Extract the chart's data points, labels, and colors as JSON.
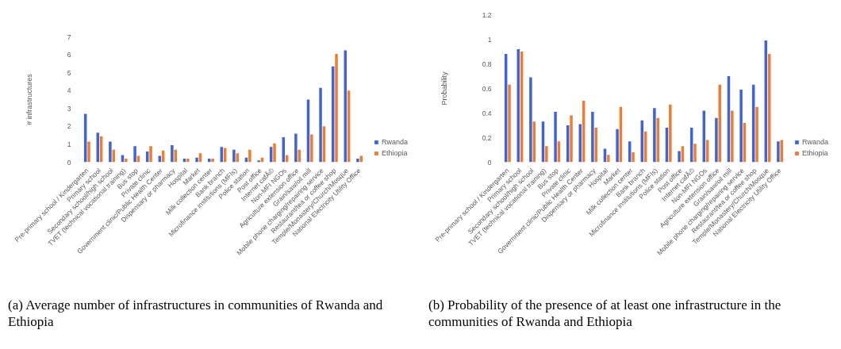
{
  "chart_data": [
    {
      "type": "bar",
      "ylabel": "# infrastructures",
      "ylim": [
        0,
        7
      ],
      "yticks": [
        0,
        1,
        2,
        3,
        4,
        5,
        6,
        7
      ],
      "legend": "bottom right",
      "categories": [
        "Pre-primary school / Kindergarten",
        "Primary school",
        "Secondary school/high school",
        "TVET (technical vocational training)",
        "Bus stop",
        "Private clinic",
        "Government clinic/Public Health Center",
        "Dispensary or pharmacy",
        "Hospital",
        "Market",
        "Milk collection center",
        "Bank branch",
        "Microfinance institutions (MFIs)",
        "Police station",
        "Post office",
        "Internet cafÃ©",
        "Non-MFI NGOs",
        "Agriculture extension office",
        "Grain/saw/oil mill",
        "Mobile phone charging/repairing service",
        "Restaurant/tea or coffee shop",
        "Temple/Monastery/Church/Mosque",
        "National Electricity Utility Office"
      ],
      "series": [
        {
          "name": "Rwanda",
          "color": "#3f64d8",
          "values": [
            2.7,
            1.65,
            1.15,
            0.4,
            0.9,
            0.6,
            0.35,
            0.95,
            0.2,
            0.25,
            0.2,
            0.85,
            0.7,
            0.25,
            0.1,
            0.85,
            1.4,
            1.6,
            3.5,
            4.15,
            5.35,
            6.25,
            0.2
          ]
        },
        {
          "name": "Ethiopia",
          "color": "#ed7d31",
          "values": [
            1.15,
            1.45,
            0.7,
            0.2,
            0.35,
            0.9,
            0.65,
            0.7,
            0.2,
            0.5,
            0.2,
            0.8,
            0.5,
            0.7,
            0.25,
            1.05,
            0.4,
            0.7,
            1.55,
            2.0,
            6.05,
            4.0,
            0.35
          ]
        }
      ],
      "annotations": [
        "(a) Average number of infrastructures in communities of Rwanda and Ethiopia"
      ]
    },
    {
      "type": "bar",
      "ylabel": "Probability",
      "ylim": [
        0,
        1.2
      ],
      "yticks": [
        0,
        0.2,
        0.4,
        0.6,
        0.8,
        1,
        1.2
      ],
      "legend": "bottom right",
      "categories": [
        "Pre-primary school / Kindergarten",
        "Primary school",
        "Secondary school/high school",
        "TVET (technical vocational training)",
        "Bus stop",
        "Private clinic",
        "Government clinic/Public Health Center",
        "Dispensary or pharmacy",
        "Hospital",
        "Market",
        "Milk collection center",
        "Bank branch",
        "Microfinance institutions (MFIs)",
        "Police station",
        "Post office",
        "Internet cafÃ©",
        "Non-MFI NGOs",
        "Agriculture extension office",
        "Grain/saw/oil mill",
        "Mobile phone charging/repairing service",
        "Restaurant/tea or coffee shop",
        "Temple/Monastery/Church/Mosque",
        "National Electricity Utility Office"
      ],
      "series": [
        {
          "name": "Rwanda",
          "color": "#3f64d8",
          "values": [
            0.88,
            0.92,
            0.69,
            0.33,
            0.41,
            0.3,
            0.31,
            0.41,
            0.11,
            0.27,
            0.17,
            0.34,
            0.44,
            0.28,
            0.09,
            0.28,
            0.42,
            0.36,
            0.7,
            0.59,
            0.63,
            0.99,
            0.17
          ]
        },
        {
          "name": "Ethiopia",
          "color": "#ed7d31",
          "values": [
            0.63,
            0.9,
            0.33,
            0.13,
            0.17,
            0.38,
            0.5,
            0.28,
            0.06,
            0.45,
            0.08,
            0.25,
            0.36,
            0.47,
            0.13,
            0.15,
            0.18,
            0.63,
            0.42,
            0.32,
            0.45,
            0.88,
            0.18
          ]
        }
      ],
      "annotations": [
        "(b) Probability of the presence of at least one infrastructure in the communities of Rwanda and Ethiopia"
      ]
    }
  ]
}
